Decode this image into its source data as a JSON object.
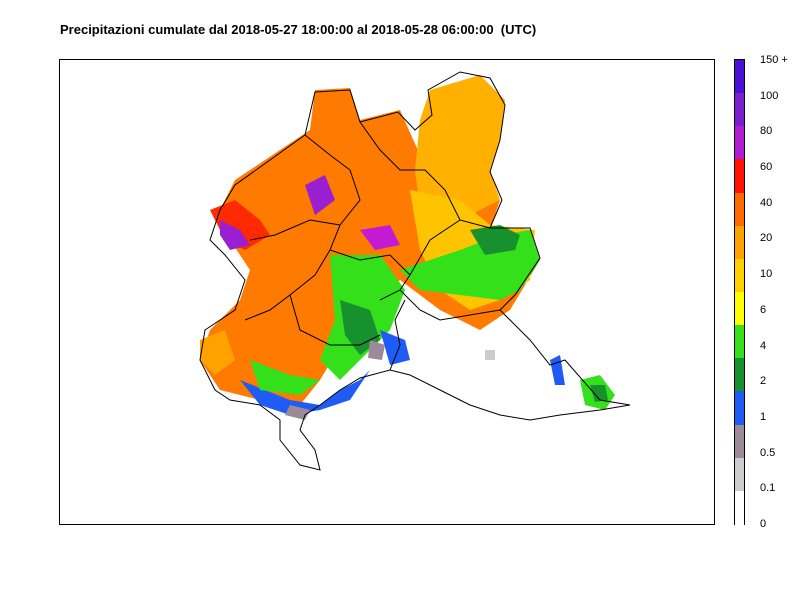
{
  "title": "Precipitazioni cumulate dal 2018-05-27 18:00:00 al 2018-05-28 06:00:00  (UTC)",
  "legend": {
    "labels": [
      "150 +",
      "100",
      "80",
      "60",
      "40",
      "20",
      "10",
      "6",
      "4",
      "2",
      "1",
      "0.5",
      "0.1",
      "0"
    ],
    "colors": [
      "#4b0fd7",
      "#7a1fd0",
      "#b01bd3",
      "#ff1200",
      "#ff6a00",
      "#ffa200",
      "#ffd000",
      "#ffff00",
      "#33e01a",
      "#17902e",
      "#1f5cf5",
      "#9c8a99",
      "#cccccc",
      "#ffffff"
    ]
  }
}
